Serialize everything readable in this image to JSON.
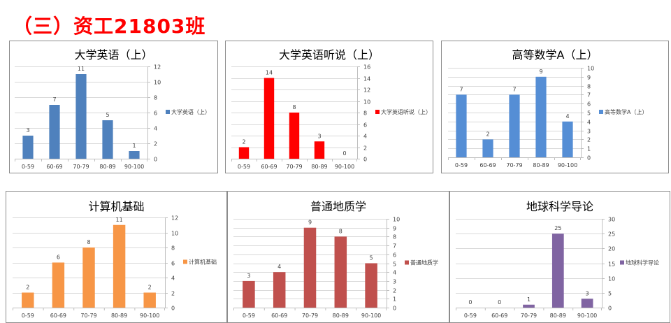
{
  "heading": "（三）资工21803班",
  "chart_data": [
    {
      "type": "bar",
      "title": "大学英语（上）",
      "categories": [
        "0-59",
        "60-69",
        "70-79",
        "80-89",
        "90-100"
      ],
      "series": [
        {
          "name": "大学英语（上）",
          "values": [
            3,
            7,
            11,
            5,
            1
          ],
          "color": "#4f81bd"
        }
      ],
      "ylim": [
        0,
        12
      ],
      "ystep": 2,
      "yaxis": "right",
      "legend": "right",
      "grid": true
    },
    {
      "type": "bar",
      "title": "大学英语听说（上）",
      "categories": [
        "0-59",
        "60-69",
        "70-79",
        "80-89",
        "90-100"
      ],
      "series": [
        {
          "name": "大学英语听说（上）",
          "values": [
            2,
            14,
            8,
            3,
            0
          ],
          "color": "#ff0000"
        }
      ],
      "ylim": [
        0,
        16
      ],
      "ystep": 2,
      "yaxis": "right",
      "legend": "right",
      "grid": true
    },
    {
      "type": "bar",
      "title": "高等数学A（上）",
      "categories": [
        "0-59",
        "60-69",
        "70-79",
        "80-89",
        "90-100"
      ],
      "series": [
        {
          "name": "高等数学A（上）",
          "values": [
            7,
            2,
            7,
            9,
            4
          ],
          "color": "#558ed5"
        }
      ],
      "ylim": [
        0,
        10
      ],
      "ystep": 1,
      "yaxis": "right",
      "legend": "right",
      "grid": true
    },
    {
      "type": "bar",
      "title": "计算机基础",
      "categories": [
        "0-59",
        "60-69",
        "70-79",
        "80-89",
        "90-100"
      ],
      "series": [
        {
          "name": "计算机基础",
          "values": [
            2,
            6,
            8,
            11,
            2
          ],
          "color": "#f79646"
        }
      ],
      "ylim": [
        0,
        12
      ],
      "ystep": 2,
      "yaxis": "right",
      "legend": "right",
      "grid": true
    },
    {
      "type": "bar",
      "title": "普通地质学",
      "categories": [
        "0-59",
        "60-69",
        "70-79",
        "80-89",
        "90-100"
      ],
      "series": [
        {
          "name": "普通地质学",
          "values": [
            3,
            4,
            9,
            8,
            5
          ],
          "color": "#c0504d"
        }
      ],
      "ylim": [
        0,
        10
      ],
      "ystep": 1,
      "yaxis": "right",
      "legend": "right",
      "grid": true
    },
    {
      "type": "bar",
      "title": "地球科学导论",
      "categories": [
        "0-59",
        "60-69",
        "70-79",
        "80-89",
        "90-100"
      ],
      "series": [
        {
          "name": "地球科学导论",
          "values": [
            0,
            0,
            1,
            25,
            3
          ],
          "color": "#8064a2"
        }
      ],
      "ylim": [
        0,
        30
      ],
      "ystep": 5,
      "yaxis": "right",
      "legend": "right",
      "grid": true
    }
  ]
}
